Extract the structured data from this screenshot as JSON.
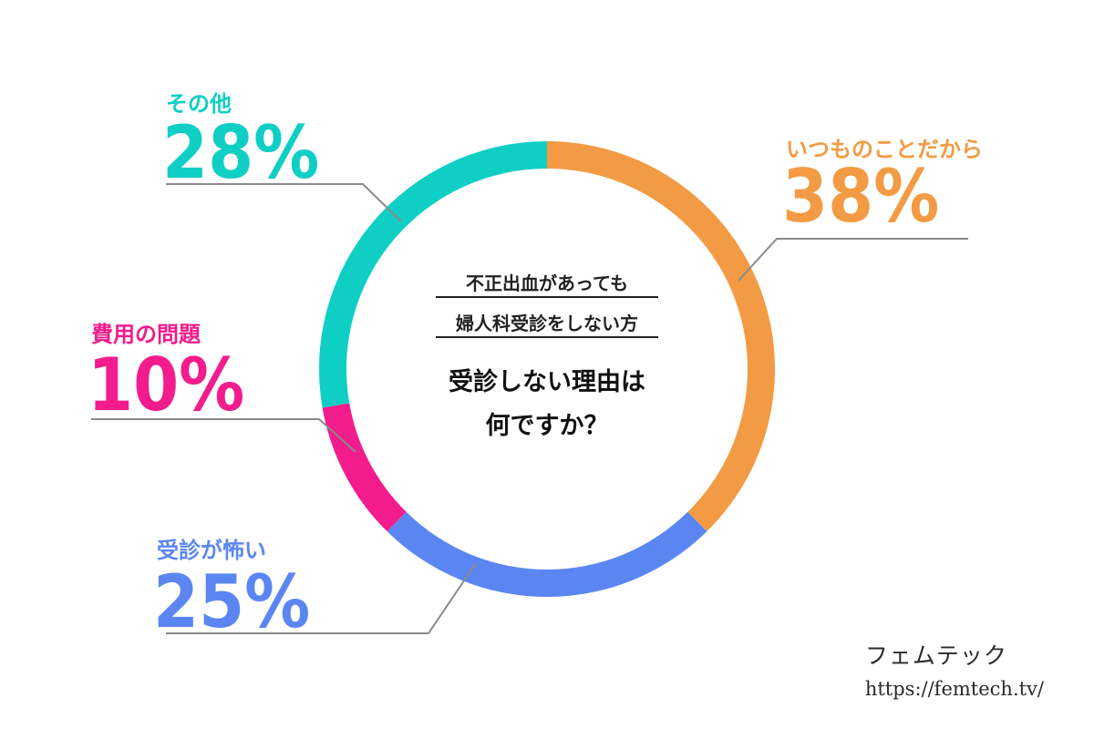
{
  "chart_data": {
    "type": "pie",
    "subtitle_lines": [
      "不正出血があっても",
      "婦人科受診をしない方"
    ],
    "title_lines": [
      "受診しない理由は",
      "何ですか？"
    ],
    "unit": "%",
    "slices": [
      {
        "label": "いつものことだから",
        "value": 38,
        "display": "38%",
        "color": "#f29b44"
      },
      {
        "label": "受診が怖い",
        "value": 25,
        "display": "25%",
        "color": "#5b86f2"
      },
      {
        "label": "費用の問題",
        "value": 10,
        "display": "10%",
        "color": "#f21c8c"
      },
      {
        "label": "その他",
        "value": 28,
        "display": "28%",
        "color": "#0fcfc4"
      }
    ],
    "legend": "callout labels around ring"
  },
  "watermark": {
    "logo": "フェムテック",
    "url": "https://femtech.tv/"
  },
  "colors": {
    "leader_line": "#8a8a8a",
    "background": "#ffffff"
  }
}
